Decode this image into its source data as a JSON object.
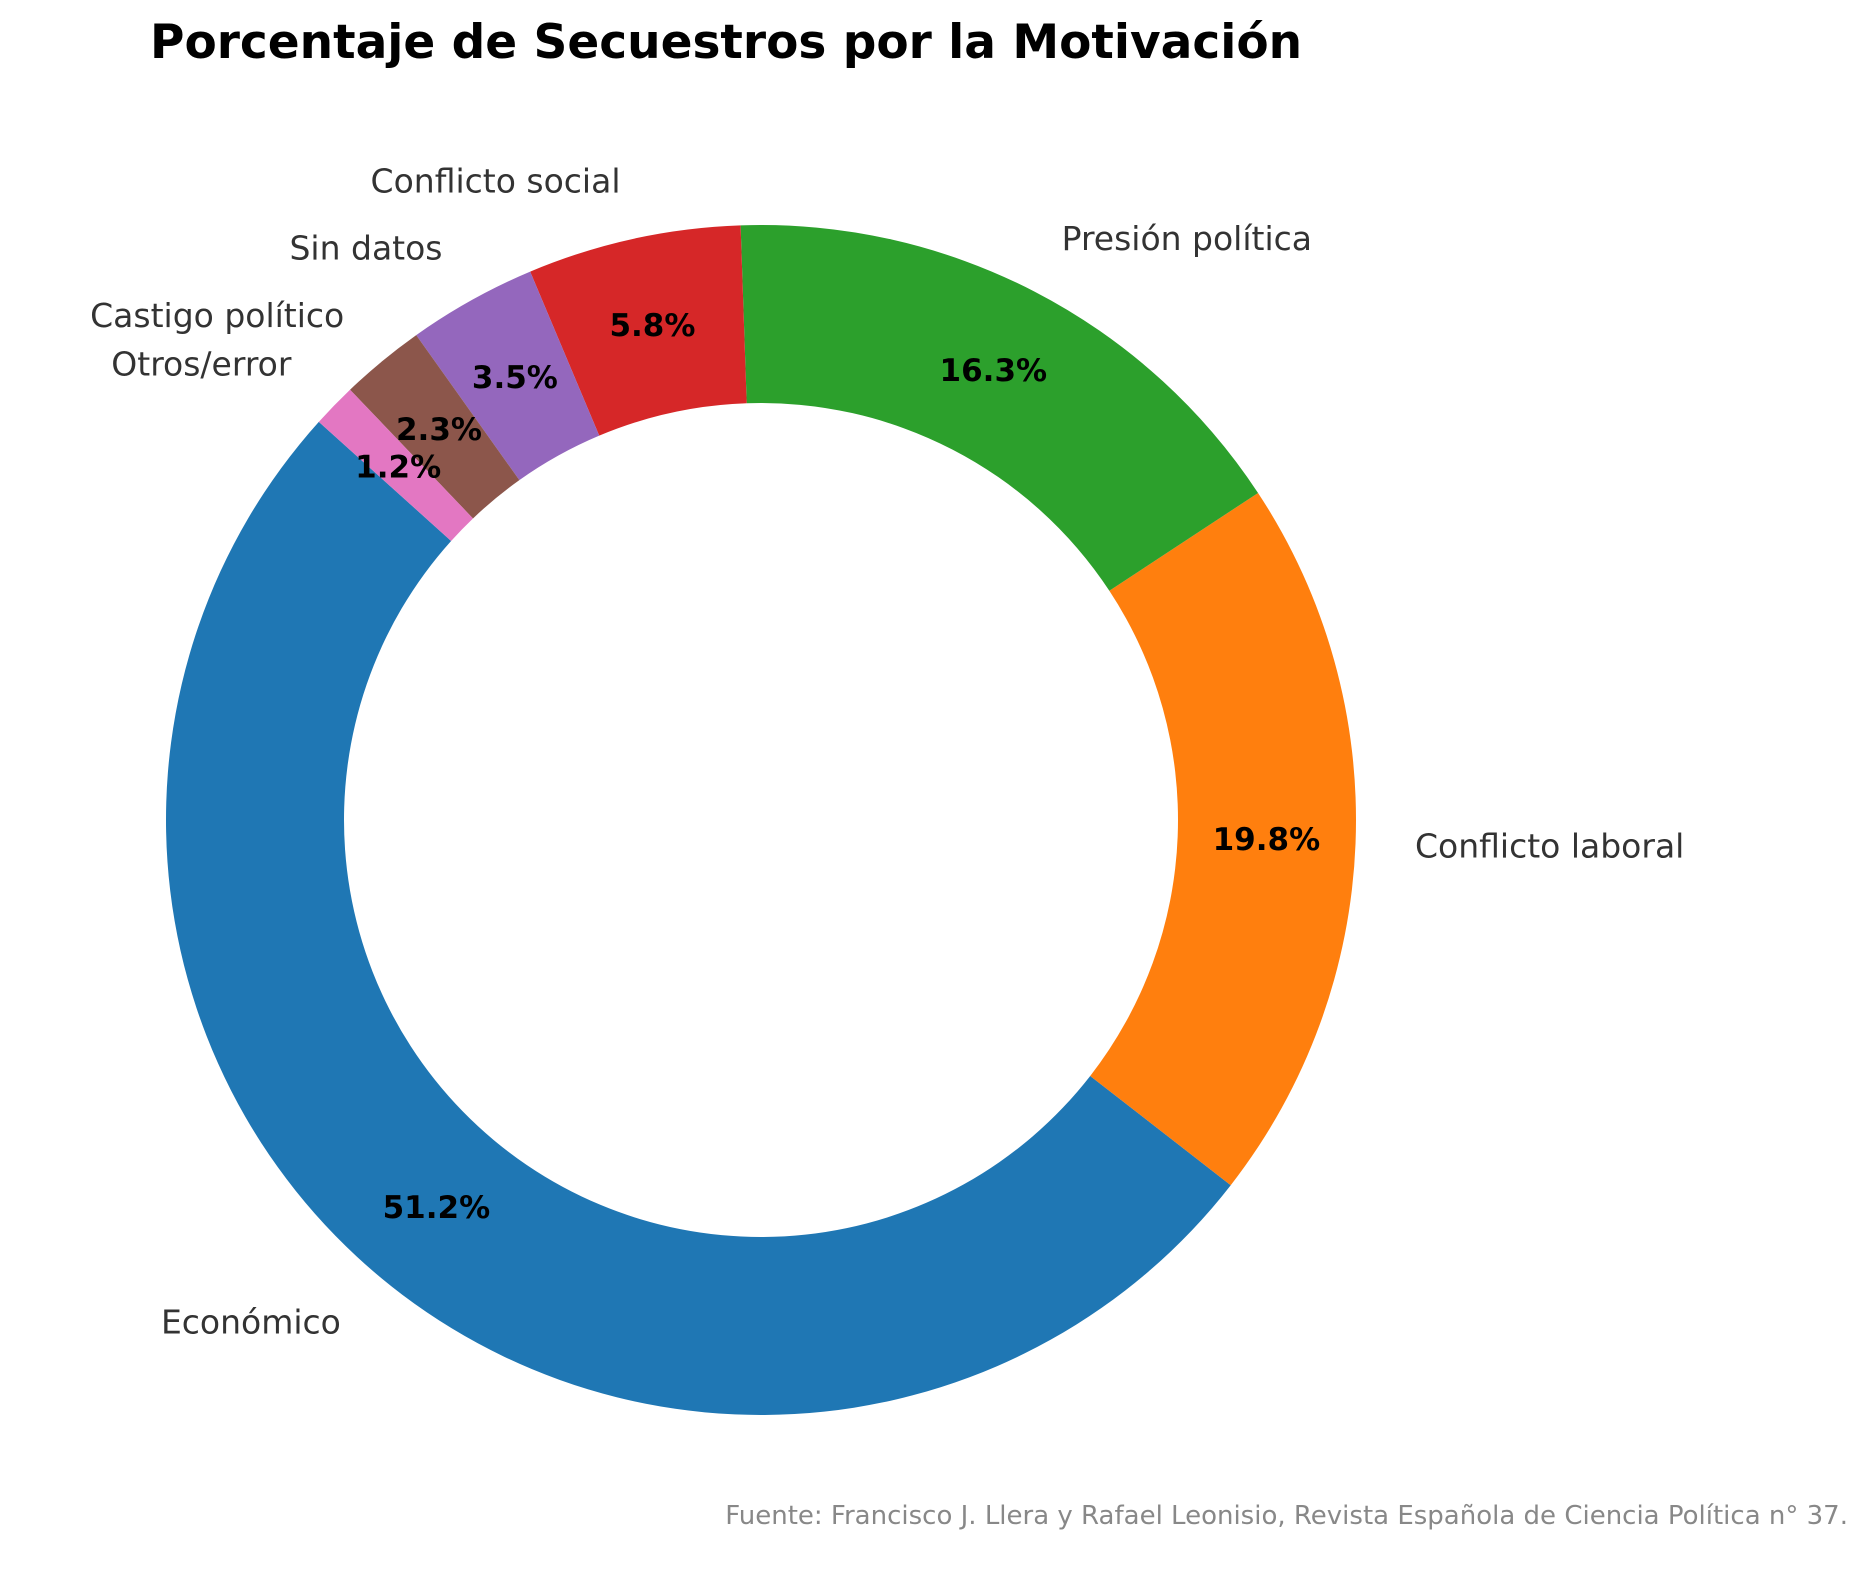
{
  "chart_data": {
    "type": "pie",
    "donut": true,
    "title": "Porcentaje de Secuestros por la Motivación",
    "source": "Fuente: Francisco J. Llera y Rafael Leonisio, Revista Española de Ciencia Política n° 37.",
    "legend": "none",
    "slices": [
      {
        "label": "Económico",
        "value": 51.2,
        "pct_label": "51.2%",
        "color": "#1f77b4"
      },
      {
        "label": "Conflicto laboral",
        "value": 19.8,
        "pct_label": "19.8%",
        "color": "#ff7f0e"
      },
      {
        "label": "Presión política",
        "value": 16.3,
        "pct_label": "16.3%",
        "color": "#2ca02c"
      },
      {
        "label": "Conflicto social",
        "value": 5.8,
        "pct_label": "5.8%",
        "color": "#d62728"
      },
      {
        "label": "Sin datos",
        "value": 3.5,
        "pct_label": "3.5%",
        "color": "#9467bd"
      },
      {
        "label": "Castigo político",
        "value": 2.3,
        "pct_label": "2.3%",
        "color": "#8c564b"
      },
      {
        "label": "Otros/error",
        "value": 1.2,
        "pct_label": "1.2%",
        "color": "#e377c2"
      }
    ]
  }
}
